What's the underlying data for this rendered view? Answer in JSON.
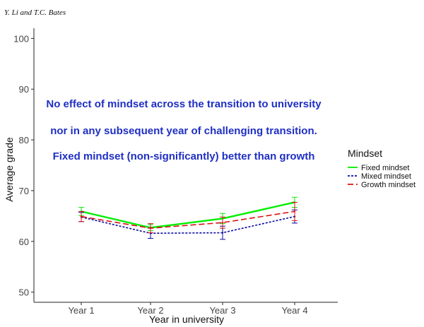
{
  "header": {
    "text": "Y. Li and T.C. Bates"
  },
  "chart_data": {
    "type": "line",
    "title": "",
    "xlabel": "Year in university",
    "ylabel": "Average grade",
    "categories": [
      "Year 1",
      "Year 2",
      "Year 3",
      "Year 4"
    ],
    "ylim": [
      48,
      102
    ],
    "yticks": [
      50,
      60,
      70,
      80,
      90,
      100
    ],
    "grid": false,
    "legend": {
      "title": "Mindset",
      "position": "right",
      "entries": [
        "Fixed mindset",
        "Mixed mindset",
        "Growth mindset"
      ]
    },
    "series": [
      {
        "name": "Fixed mindset",
        "color": "#00ee00",
        "dash": "solid",
        "values": [
          65.9,
          62.7,
          64.5,
          67.7
        ],
        "err": [
          0.8,
          0.6,
          1.0,
          1.0
        ]
      },
      {
        "name": "Mixed mindset",
        "color": "#0a0aa0",
        "dash": "short-dash",
        "values": [
          64.8,
          61.6,
          61.7,
          64.9
        ],
        "err": [
          0.9,
          1.0,
          1.3,
          1.3
        ]
      },
      {
        "name": "Growth mindset",
        "color": "#dd1111",
        "dash": "long-dash",
        "values": [
          64.9,
          62.6,
          63.7,
          65.9
        ],
        "err": [
          1.0,
          0.9,
          1.1,
          1.8
        ]
      }
    ],
    "annotations": [
      "No effect of mindset across the transition to university",
      "nor in any subsequent year of challenging transition.",
      "Fixed mindset (non-significantly) better than growth"
    ]
  }
}
